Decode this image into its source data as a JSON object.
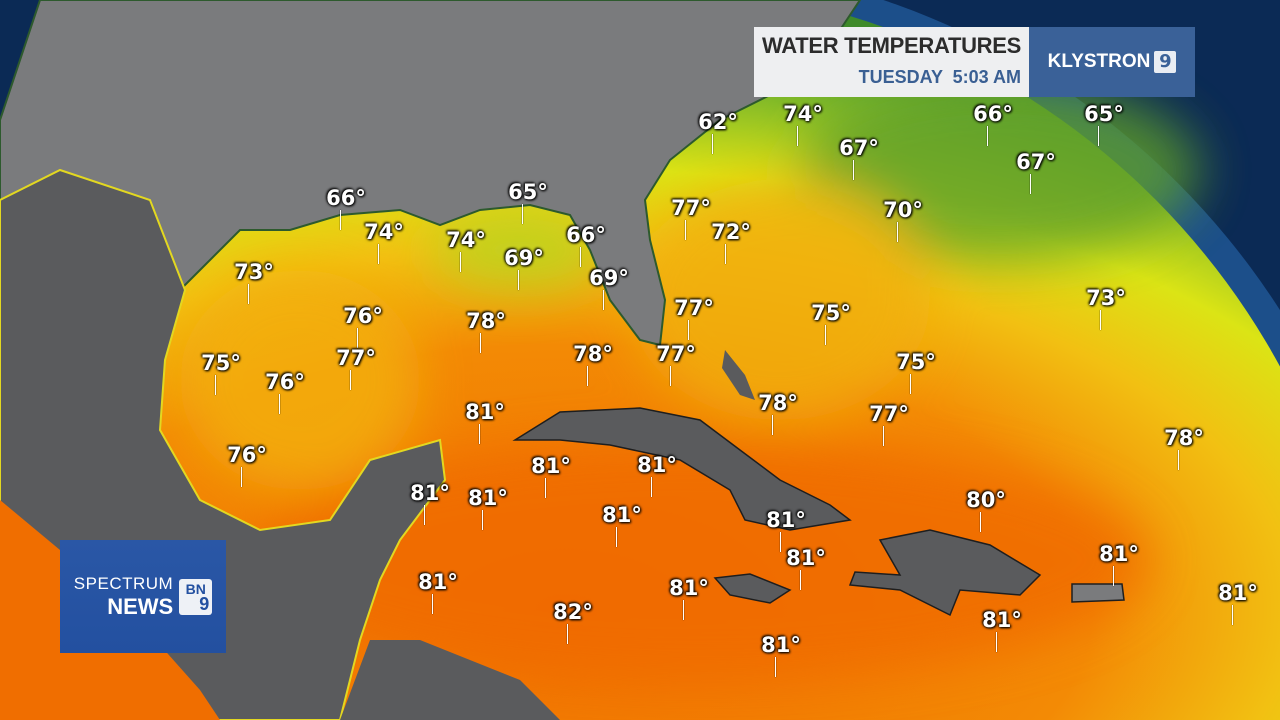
{
  "header": {
    "title": "WATER TEMPERATURES",
    "subtitle": "TUESDAY  5:03 AM",
    "brand": "KLYSTRON",
    "brand_number": "9"
  },
  "logo": {
    "line1": "SPECTRUM",
    "line2": "NEWS",
    "badge_top": "BN",
    "badge_bottom": "9"
  },
  "colors": {
    "ocean_cold": "#3f8a2a",
    "ocean_mild": "#e5e60e",
    "ocean_warm": "#f5a00a",
    "ocean_hot": "#f07000",
    "land": "#7a7b7d",
    "outside": "#0b2a55",
    "header_blue": "#3a6198",
    "logo_blue": "#2350a0"
  },
  "temperatures": [
    "62°",
    "74°",
    "66°",
    "65°",
    "67°",
    "67°",
    "66°",
    "65°",
    "77°",
    "70°",
    "74°",
    "74°",
    "72°",
    "66°",
    "73°",
    "69°",
    "69°",
    "73°",
    "76°",
    "78°",
    "77°",
    "75°",
    "75°",
    "77°",
    "76°",
    "78°",
    "77°",
    "75°",
    "78°",
    "77°",
    "81°",
    "78°",
    "76°",
    "81°",
    "81°",
    "81°",
    "81°",
    "80°",
    "81°",
    "81°",
    "81°",
    "81°",
    "81°",
    "81°",
    "82°",
    "81°",
    "81°",
    "81°"
  ]
}
